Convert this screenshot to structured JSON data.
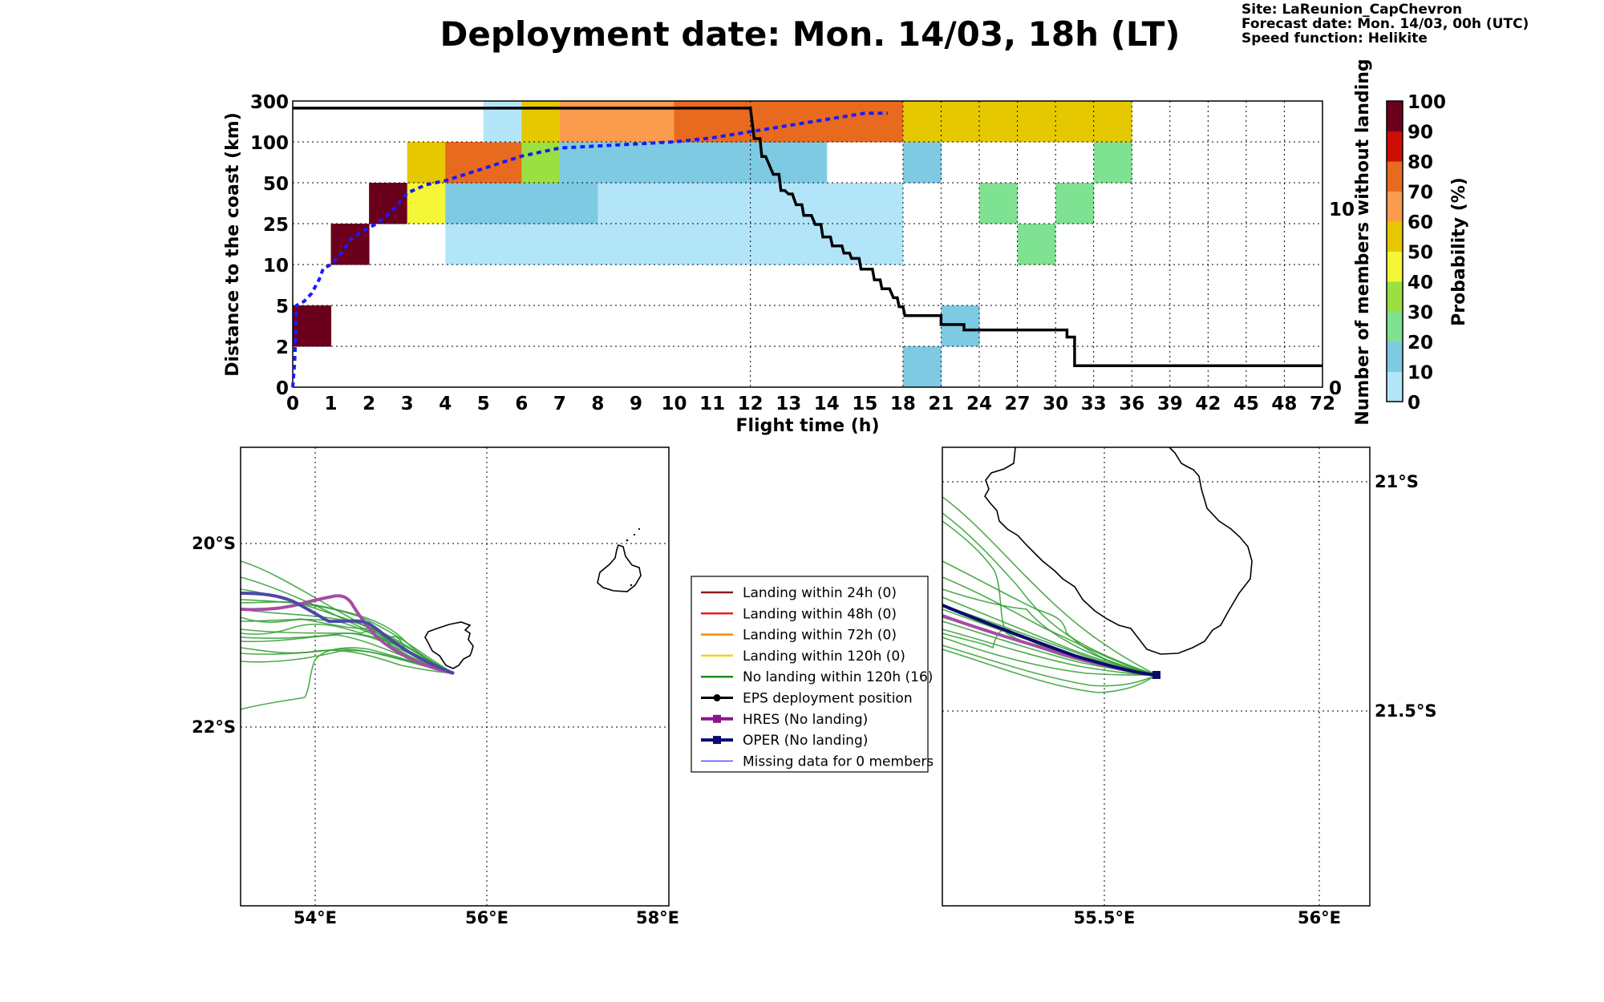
{
  "header": {
    "title": "Deployment date: Mon. 14/03, 18h (LT)",
    "site": "Site: LaReunion_CapChevron",
    "forecast_date": "Forecast date: Mon. 14/03, 00h (UTC)",
    "speed_function": "Speed function: Helikite"
  },
  "chart_data": [
    {
      "type": "heatmap",
      "xlabel": "Flight time (h)",
      "ylabel": "Distance to the coast (km)",
      "y2label": "Number of members without landing",
      "colorbar_label": "Probability (%)",
      "x_tick_labels": [
        "0",
        "1",
        "2",
        "3",
        "4",
        "5",
        "6",
        "7",
        "8",
        "9",
        "10",
        "11",
        "12",
        "13",
        "14",
        "15",
        "18",
        "21",
        "24",
        "27",
        "30",
        "33",
        "36",
        "39",
        "42",
        "45",
        "48",
        "72"
      ],
      "y_tick_labels": [
        "0",
        "2",
        "5",
        "10",
        "25",
        "50",
        "100",
        "300"
      ],
      "y2_tick_labels": [
        "0",
        "10"
      ],
      "y2lim": [
        0,
        16
      ],
      "colorbar_ticks": [
        "0",
        "10",
        "20",
        "30",
        "40",
        "50",
        "60",
        "70",
        "80",
        "90",
        "100"
      ],
      "colorbar_colors": [
        "#b3e5f9",
        "#7ecae3",
        "#7fe292",
        "#9be041",
        "#f4f637",
        "#e6c800",
        "#fb9b4e",
        "#e86a1e",
        "#cc0c05",
        "#6b001d"
      ],
      "cells": [
        {
          "x_bin": 0,
          "y_bin": 1,
          "probability": 100
        },
        {
          "x_bin": 1,
          "y_bin": 3,
          "probability": 100
        },
        {
          "x_bin": 2,
          "y_bin": 4,
          "probability": 100
        },
        {
          "x_bin": 3,
          "y_bin": 4,
          "probability": 40
        },
        {
          "x_bin": 3,
          "y_bin": 5,
          "probability": 50
        },
        {
          "x_bin": 4,
          "y_bin": 3,
          "probability": 5
        },
        {
          "x_bin": 4,
          "y_bin": 4,
          "probability": 10
        },
        {
          "x_bin": 4,
          "y_bin": 5,
          "probability": 70
        },
        {
          "x_bin": 5,
          "y_bin": 3,
          "probability": 5
        },
        {
          "x_bin": 5,
          "y_bin": 4,
          "probability": 10
        },
        {
          "x_bin": 5,
          "y_bin": 5,
          "probability": 70
        },
        {
          "x_bin": 5,
          "y_bin": 6,
          "probability": 5
        },
        {
          "x_bin": 6,
          "y_bin": 3,
          "probability": 5
        },
        {
          "x_bin": 6,
          "y_bin": 4,
          "probability": 10
        },
        {
          "x_bin": 6,
          "y_bin": 5,
          "probability": 30
        },
        {
          "x_bin": 6,
          "y_bin": 6,
          "probability": 50
        },
        {
          "x_bin": 7,
          "y_bin": 3,
          "probability": 5
        },
        {
          "x_bin": 7,
          "y_bin": 4,
          "probability": 10
        },
        {
          "x_bin": 7,
          "y_bin": 5,
          "probability": 10
        },
        {
          "x_bin": 7,
          "y_bin": 6,
          "probability": 60
        },
        {
          "x_bin": 8,
          "y_bin": 3,
          "probability": 5
        },
        {
          "x_bin": 8,
          "y_bin": 4,
          "probability": 5
        },
        {
          "x_bin": 8,
          "y_bin": 5,
          "probability": 10
        },
        {
          "x_bin": 8,
          "y_bin": 6,
          "probability": 60
        },
        {
          "x_bin": 9,
          "y_bin": 3,
          "probability": 5
        },
        {
          "x_bin": 9,
          "y_bin": 4,
          "probability": 5
        },
        {
          "x_bin": 9,
          "y_bin": 5,
          "probability": 10
        },
        {
          "x_bin": 9,
          "y_bin": 6,
          "probability": 60
        },
        {
          "x_bin": 10,
          "y_bin": 3,
          "probability": 5
        },
        {
          "x_bin": 10,
          "y_bin": 4,
          "probability": 5
        },
        {
          "x_bin": 10,
          "y_bin": 5,
          "probability": 10
        },
        {
          "x_bin": 10,
          "y_bin": 6,
          "probability": 70
        },
        {
          "x_bin": 11,
          "y_bin": 3,
          "probability": 5
        },
        {
          "x_bin": 11,
          "y_bin": 4,
          "probability": 5
        },
        {
          "x_bin": 11,
          "y_bin": 5,
          "probability": 10
        },
        {
          "x_bin": 11,
          "y_bin": 6,
          "probability": 70
        },
        {
          "x_bin": 12,
          "y_bin": 3,
          "probability": 5
        },
        {
          "x_bin": 12,
          "y_bin": 4,
          "probability": 5
        },
        {
          "x_bin": 12,
          "y_bin": 5,
          "probability": 10
        },
        {
          "x_bin": 12,
          "y_bin": 6,
          "probability": 70
        },
        {
          "x_bin": 13,
          "y_bin": 3,
          "probability": 5
        },
        {
          "x_bin": 13,
          "y_bin": 4,
          "probability": 5
        },
        {
          "x_bin": 13,
          "y_bin": 5,
          "probability": 10
        },
        {
          "x_bin": 13,
          "y_bin": 6,
          "probability": 70
        },
        {
          "x_bin": 14,
          "y_bin": 3,
          "probability": 5
        },
        {
          "x_bin": 14,
          "y_bin": 4,
          "probability": 5
        },
        {
          "x_bin": 14,
          "y_bin": 6,
          "probability": 70
        },
        {
          "x_bin": 15,
          "y_bin": 3,
          "probability": 5
        },
        {
          "x_bin": 15,
          "y_bin": 4,
          "probability": 5
        },
        {
          "x_bin": 15,
          "y_bin": 6,
          "probability": 70
        },
        {
          "x_bin": 16,
          "y_bin": 0,
          "probability": 10
        },
        {
          "x_bin": 16,
          "y_bin": 5,
          "probability": 10
        },
        {
          "x_bin": 16,
          "y_bin": 6,
          "probability": 50
        },
        {
          "x_bin": 17,
          "y_bin": 1,
          "probability": 10
        },
        {
          "x_bin": 17,
          "y_bin": 6,
          "probability": 50
        },
        {
          "x_bin": 18,
          "y_bin": 4,
          "probability": 20
        },
        {
          "x_bin": 18,
          "y_bin": 6,
          "probability": 50
        },
        {
          "x_bin": 19,
          "y_bin": 3,
          "probability": 20
        },
        {
          "x_bin": 19,
          "y_bin": 6,
          "probability": 50
        },
        {
          "x_bin": 20,
          "y_bin": 4,
          "probability": 20
        },
        {
          "x_bin": 20,
          "y_bin": 6,
          "probability": 50
        },
        {
          "x_bin": 21,
          "y_bin": 5,
          "probability": 20
        },
        {
          "x_bin": 21,
          "y_bin": 6,
          "probability": 50
        }
      ],
      "members_without_landing_curve": [
        {
          "x_bin": 0,
          "members": 15.6
        },
        {
          "x_bin": 12,
          "members": 15.6
        },
        {
          "x_bin": 12.1,
          "members": 13.9
        },
        {
          "x_bin": 12.25,
          "members": 13.9
        },
        {
          "x_bin": 12.3,
          "members": 12.9
        },
        {
          "x_bin": 12.4,
          "members": 12.9
        },
        {
          "x_bin": 12.6,
          "members": 11.9
        },
        {
          "x_bin": 12.75,
          "members": 11.9
        },
        {
          "x_bin": 12.8,
          "members": 11.0
        },
        {
          "x_bin": 12.9,
          "members": 11.0
        },
        {
          "x_bin": 13.0,
          "members": 10.8
        },
        {
          "x_bin": 13.1,
          "members": 10.8
        },
        {
          "x_bin": 13.2,
          "members": 10.2
        },
        {
          "x_bin": 13.35,
          "members": 10.2
        },
        {
          "x_bin": 13.4,
          "members": 9.6
        },
        {
          "x_bin": 13.6,
          "members": 9.6
        },
        {
          "x_bin": 13.7,
          "members": 9.1
        },
        {
          "x_bin": 13.85,
          "members": 9.1
        },
        {
          "x_bin": 13.9,
          "members": 8.4
        },
        {
          "x_bin": 14.1,
          "members": 8.4
        },
        {
          "x_bin": 14.15,
          "members": 7.9
        },
        {
          "x_bin": 14.4,
          "members": 7.9
        },
        {
          "x_bin": 14.45,
          "members": 7.5
        },
        {
          "x_bin": 14.6,
          "members": 7.5
        },
        {
          "x_bin": 14.65,
          "members": 7.2
        },
        {
          "x_bin": 14.85,
          "members": 7.2
        },
        {
          "x_bin": 14.9,
          "members": 6.6
        },
        {
          "x_bin": 15.2,
          "members": 6.6
        },
        {
          "x_bin": 15.25,
          "members": 6.0
        },
        {
          "x_bin": 15.4,
          "members": 6.0
        },
        {
          "x_bin": 15.45,
          "members": 5.5
        },
        {
          "x_bin": 15.65,
          "members": 5.5
        },
        {
          "x_bin": 15.75,
          "members": 5.0
        },
        {
          "x_bin": 15.85,
          "members": 5.0
        },
        {
          "x_bin": 15.9,
          "members": 4.5
        },
        {
          "x_bin": 16.0,
          "members": 4.5
        },
        {
          "x_bin": 16.05,
          "members": 4.0
        },
        {
          "x_bin": 17.0,
          "members": 4.0
        },
        {
          "x_bin": 17.0,
          "members": 3.5
        },
        {
          "x_bin": 17.6,
          "members": 3.5
        },
        {
          "x_bin": 17.6,
          "members": 3.2
        },
        {
          "x_bin": 20.3,
          "members": 3.2
        },
        {
          "x_bin": 20.3,
          "members": 2.8
        },
        {
          "x_bin": 20.3,
          "members": 2.8
        },
        {
          "x_bin": 20.5,
          "members": 2.8
        },
        {
          "x_bin": 20.5,
          "members": 1.2
        },
        {
          "x_bin": 27,
          "members": 1.2
        }
      ],
      "mean_distance_curve": [
        {
          "x_bin": 0,
          "y_bin": 0
        },
        {
          "x_bin": 0.05,
          "y_bin": 0.6
        },
        {
          "x_bin": 0.1,
          "y_bin": 2.0
        },
        {
          "x_bin": 0.3,
          "y_bin": 2.1
        },
        {
          "x_bin": 0.5,
          "y_bin": 2.3
        },
        {
          "x_bin": 0.7,
          "y_bin": 2.65
        },
        {
          "x_bin": 0.8,
          "y_bin": 2.9
        },
        {
          "x_bin": 1.0,
          "y_bin": 3.0
        },
        {
          "x_bin": 1.3,
          "y_bin": 3.3
        },
        {
          "x_bin": 1.5,
          "y_bin": 3.6
        },
        {
          "x_bin": 1.8,
          "y_bin": 3.8
        },
        {
          "x_bin": 2.2,
          "y_bin": 4.0
        },
        {
          "x_bin": 2.6,
          "y_bin": 4.3
        },
        {
          "x_bin": 3.0,
          "y_bin": 4.75
        },
        {
          "x_bin": 3.5,
          "y_bin": 4.95
        },
        {
          "x_bin": 4.0,
          "y_bin": 5.05
        },
        {
          "x_bin": 4.5,
          "y_bin": 5.2
        },
        {
          "x_bin": 5.0,
          "y_bin": 5.35
        },
        {
          "x_bin": 5.5,
          "y_bin": 5.5
        },
        {
          "x_bin": 6.0,
          "y_bin": 5.65
        },
        {
          "x_bin": 7.0,
          "y_bin": 5.85
        },
        {
          "x_bin": 8.0,
          "y_bin": 5.9
        },
        {
          "x_bin": 9.0,
          "y_bin": 5.95
        },
        {
          "x_bin": 10.0,
          "y_bin": 6.0
        },
        {
          "x_bin": 11.0,
          "y_bin": 6.1
        },
        {
          "x_bin": 12.0,
          "y_bin": 6.25
        },
        {
          "x_bin": 13.0,
          "y_bin": 6.4
        },
        {
          "x_bin": 14.0,
          "y_bin": 6.55
        },
        {
          "x_bin": 15.0,
          "y_bin": 6.7
        },
        {
          "x_bin": 15.6,
          "y_bin": 6.7
        }
      ]
    }
  ],
  "maps": {
    "left": {
      "lon_ticks": [
        "54°E",
        "56°E",
        "58°E"
      ],
      "lat_ticks": [
        "20°S",
        "22°S"
      ]
    },
    "right": {
      "lon_ticks": [
        "55.5°E",
        "56°E"
      ],
      "lat_ticks": [
        "21°S",
        "21.5°S"
      ]
    }
  },
  "legend": {
    "items": [
      {
        "label": "Landing within 24h (0)",
        "color": "#8b1a1a",
        "style": "line"
      },
      {
        "label": "Landing within 48h (0)",
        "color": "#e8231c",
        "style": "line"
      },
      {
        "label": "Landing within 72h (0)",
        "color": "#f88a00",
        "style": "line"
      },
      {
        "label": "Landing within 120h (0)",
        "color": "#f4d21c",
        "style": "line"
      },
      {
        "label": "No landing within 120h (16)",
        "color": "#1f8a1f",
        "style": "line"
      },
      {
        "label": "EPS deployment position",
        "color": "#000000",
        "style": "dot"
      },
      {
        "label": "HRES (No landing)",
        "color": "#8b158b",
        "style": "square"
      },
      {
        "label": "OPER (No landing)",
        "color": "#0a0a6e",
        "style": "square"
      },
      {
        "label": "Missing data for 0 members",
        "color": "#3a3aff",
        "style": "thin"
      }
    ]
  }
}
